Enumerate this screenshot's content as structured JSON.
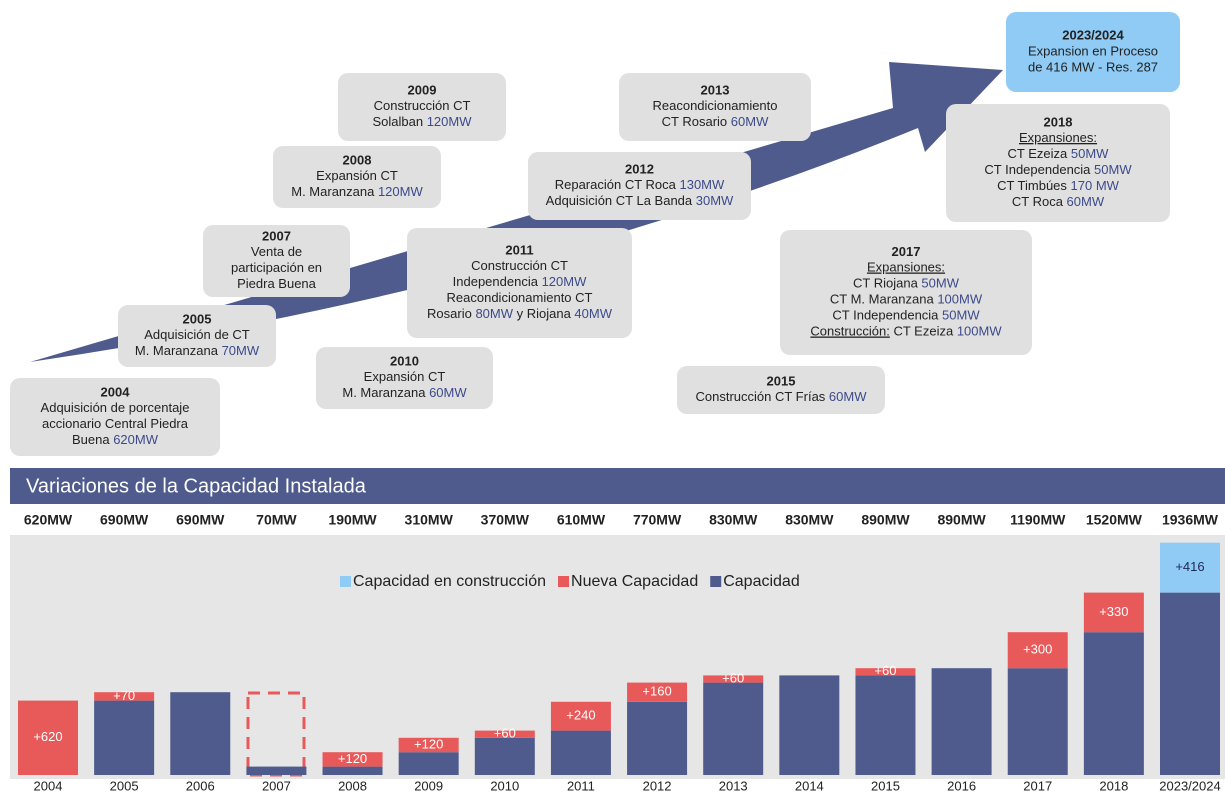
{
  "milestones": [
    {
      "year": "2004",
      "lines": [
        "Adquisición de porcentaje",
        "accionario Central Piedra",
        "Buena 620MW"
      ]
    },
    {
      "year": "2005",
      "lines": [
        "Adquisición de CT",
        "M. Maranzana 70MW"
      ]
    },
    {
      "year": "2007",
      "lines": [
        "Venta de",
        "participación en",
        "Piedra Buena"
      ]
    },
    {
      "year": "2008",
      "lines": [
        "Expansión CT",
        "M. Maranzana 120MW"
      ]
    },
    {
      "year": "2009",
      "lines": [
        "Construcción CT",
        "Solalban 120MW"
      ]
    },
    {
      "year": "2010",
      "lines": [
        "Expansión CT",
        "M. Maranzana 60MW"
      ]
    },
    {
      "year": "2011",
      "lines": [
        "Construcción CT",
        "Independencia 120MW",
        "Reacondicionamiento CT",
        "Rosario 80MW  y Riojana 40MW"
      ]
    },
    {
      "year": "2012",
      "lines": [
        "Reparación CT Roca 130MW",
        "Adquisición CT La Banda 30MW"
      ]
    },
    {
      "year": "2013",
      "lines": [
        "Reacondicionamiento",
        "CT Rosario 60MW"
      ]
    },
    {
      "year": "2015",
      "lines": [
        "Construcción CT Frías 60MW"
      ]
    },
    {
      "year": "2017",
      "lines": [
        "Expansiones:",
        "CT Riojana 50MW",
        "CT M. Maranzana 100MW",
        "CT Independencia 50MW",
        "Construcción: CT Ezeiza 100MW"
      ]
    },
    {
      "year": "2018",
      "lines": [
        "Expansiones:",
        "CT Ezeiza 50MW",
        "CT Independencia 50MW",
        "CT Timbúes 170 MW",
        "CT Roca 60MW"
      ]
    },
    {
      "year": "2023/2024",
      "lines": [
        "Expansion en Proceso",
        "de 416 MW - Res. 287"
      ]
    }
  ],
  "chart_data": {
    "type": "stacked_bar",
    "title": "Variaciones de la Capacidad Instalada",
    "categories": [
      "2004",
      "2005",
      "2006",
      "2007",
      "2008",
      "2009",
      "2010",
      "2011",
      "2012",
      "2013",
      "2014",
      "2015",
      "2016",
      "2017",
      "2018",
      "2023/2024"
    ],
    "total_labels": [
      "620MW",
      "690MW",
      "690MW",
      "70MW",
      "190MW",
      "310MW",
      "370MW",
      "610MW",
      "770MW",
      "830MW",
      "830MW",
      "890MW",
      "890MW",
      "1190MW",
      "1520MW",
      "1936MW"
    ],
    "series": [
      {
        "name": "Capacidad",
        "color": "#4f5b8c",
        "values": [
          0,
          620,
          690,
          70,
          70,
          190,
          310,
          370,
          610,
          770,
          830,
          830,
          890,
          890,
          1190,
          1520
        ]
      },
      {
        "name": "Nueva Capacidad",
        "color": "#e8595a",
        "values": [
          620,
          70,
          0,
          0,
          120,
          120,
          60,
          240,
          160,
          60,
          0,
          60,
          0,
          300,
          330,
          0
        ],
        "value_labels": [
          "+620",
          "+70",
          null,
          null,
          "+120",
          "+120",
          "+60",
          "+240",
          "+160",
          "+60",
          null,
          "+60",
          null,
          "+300",
          "+330",
          null
        ]
      },
      {
        "name": "Capacidad en construcción",
        "color": "#8fcbf4",
        "values": [
          0,
          0,
          0,
          0,
          0,
          0,
          0,
          0,
          0,
          0,
          0,
          0,
          0,
          0,
          0,
          416
        ],
        "value_labels": [
          null,
          null,
          null,
          null,
          null,
          null,
          null,
          null,
          null,
          null,
          null,
          null,
          null,
          null,
          null,
          "+416"
        ]
      }
    ],
    "ylim": [
      0,
      2000
    ]
  }
}
